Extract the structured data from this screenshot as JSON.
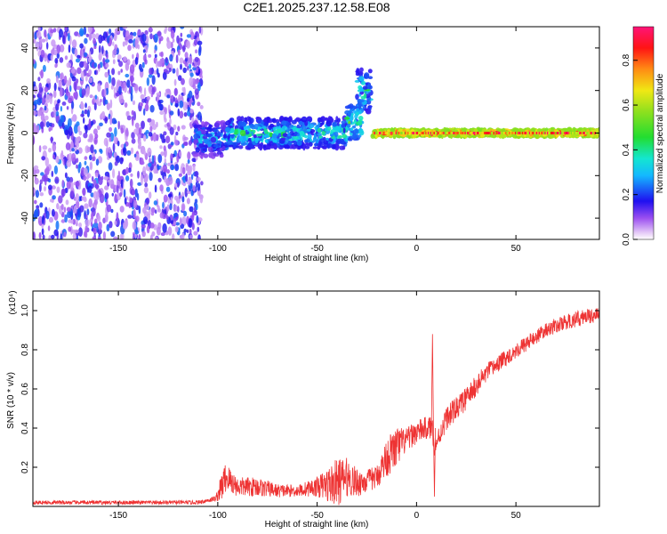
{
  "figure_title": "C2E1.2025.237.12.58.E08",
  "chart_data": [
    {
      "type": "heatmap",
      "title": "C2E1.2025.237.12.58.E08",
      "xlabel": "Height of straight line (km)",
      "ylabel": "Frequency (Hz)",
      "xlim": [
        -193,
        92
      ],
      "ylim": [
        -50,
        50
      ],
      "xticks": [
        -150,
        -100,
        -50,
        0,
        50
      ],
      "xtick_labels": [
        "-150",
        "-100",
        "-50",
        "0",
        "50"
      ],
      "yticks": [
        -40,
        -20,
        0,
        20,
        40
      ],
      "ytick_labels": [
        "-40",
        "-20",
        "0",
        "20",
        "40"
      ],
      "colorbar": {
        "label": "Normalized spectral amplitude",
        "range": [
          0,
          0.95
        ],
        "ticks": [
          0.0,
          0.2,
          0.4,
          0.6,
          0.8
        ],
        "tick_labels": [
          "0.0",
          "0.2",
          "0.4",
          "0.6",
          "0.8"
        ]
      },
      "regions": [
        {
          "name": "noise",
          "x_range": [
            -193,
            -108
          ],
          "f_range": [
            -50,
            50
          ],
          "amplitude": [
            0.05,
            0.25
          ]
        },
        {
          "name": "band-onset",
          "x_range": [
            -112,
            -95
          ],
          "f_center": -3,
          "f_width": 8,
          "amplitude": [
            0.1,
            0.4
          ]
        },
        {
          "name": "band",
          "x_range": [
            -95,
            -35
          ],
          "f_center": 0,
          "f_width": 7,
          "amplitude": [
            0.15,
            0.5
          ]
        },
        {
          "name": "rise",
          "x_range": [
            -35,
            -27
          ],
          "f_center": 5,
          "f_width": 8,
          "amplitude": [
            0.2,
            0.55
          ]
        },
        {
          "name": "spike",
          "x_range": [
            -30,
            -23
          ],
          "f_center": 20,
          "f_width": 10,
          "amplitude": [
            0.15,
            0.5
          ]
        },
        {
          "name": "stable-line",
          "x_range": [
            -22,
            92
          ],
          "f_center": 0,
          "f_width": 1.5,
          "amplitude": [
            0.55,
            0.95
          ]
        }
      ]
    },
    {
      "type": "line",
      "xlabel": "Height of straight line (km)",
      "ylabel": "SNR (10 * v/v)",
      "y_multiplier": "(x10⁴)",
      "xlim": [
        -193,
        92
      ],
      "ylim": [
        0,
        1.1
      ],
      "xticks": [
        -150,
        -100,
        -50,
        0,
        50
      ],
      "xtick_labels": [
        "-150",
        "-100",
        "-50",
        "0",
        "50"
      ],
      "yticks": [
        0.2,
        0.4,
        0.6,
        0.8,
        1.0
      ],
      "ytick_labels": [
        "0.2",
        "0.4",
        "0.6",
        "0.8",
        "1.0"
      ],
      "color": "#ee3333",
      "series": [
        {
          "name": "SNR",
          "x": [
            -193,
            -150,
            -110,
            -101,
            -98,
            -96,
            -90,
            -80,
            -70,
            -60,
            -50,
            -40,
            -35,
            -30,
            -25,
            -20,
            -15,
            -10,
            -5,
            0,
            5,
            8,
            9,
            15,
            25,
            35,
            45,
            55,
            65,
            75,
            85,
            92
          ],
          "baseline": [
            0.02,
            0.02,
            0.02,
            0.04,
            0.1,
            0.15,
            0.1,
            0.1,
            0.08,
            0.08,
            0.1,
            0.12,
            0.15,
            0.12,
            0.13,
            0.15,
            0.25,
            0.3,
            0.34,
            0.38,
            0.4,
            0.4,
            0.3,
            0.45,
            0.55,
            0.68,
            0.76,
            0.83,
            0.9,
            0.94,
            0.97,
            0.98
          ],
          "spread": [
            0.02,
            0.02,
            0.02,
            0.03,
            0.15,
            0.16,
            0.1,
            0.1,
            0.07,
            0.06,
            0.1,
            0.25,
            0.2,
            0.15,
            0.12,
            0.12,
            0.2,
            0.22,
            0.12,
            0.12,
            0.12,
            0.12,
            0.1,
            0.12,
            0.12,
            0.1,
            0.08,
            0.08,
            0.07,
            0.08,
            0.08,
            0.07
          ]
        }
      ],
      "annotations": [
        {
          "x": 8,
          "y": 0.88,
          "label": "spike"
        },
        {
          "x": 9,
          "y": 0.05,
          "label": "dip"
        }
      ]
    }
  ]
}
